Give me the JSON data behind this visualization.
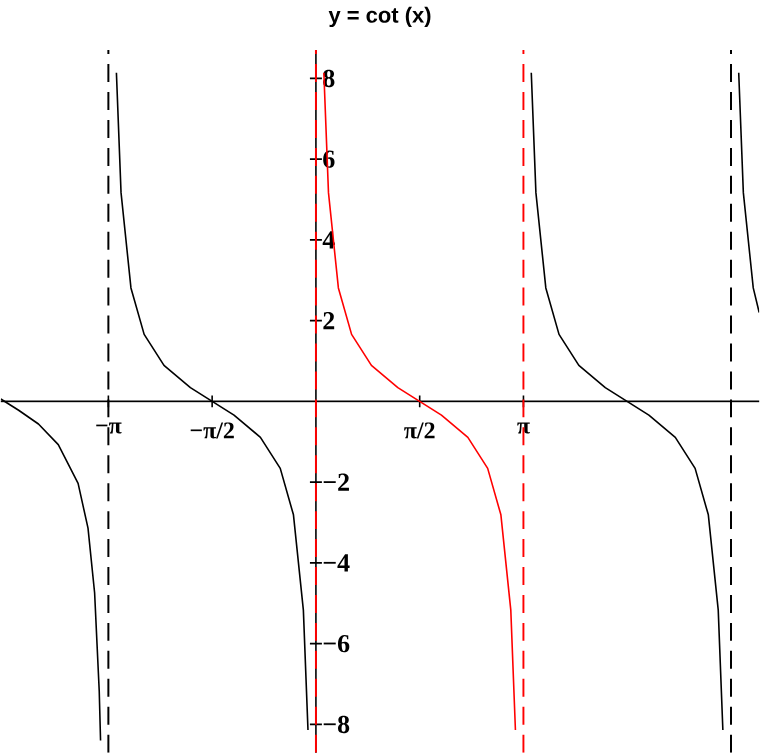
{
  "chart_data": {
    "type": "line",
    "title": "y = cot (x)",
    "xlim": [
      -4.77,
      6.71
    ],
    "ylim": [
      -8.7,
      8.7
    ],
    "xticks": [
      {
        "value": -3.1416,
        "label": "−π"
      },
      {
        "value": -1.5708,
        "label": "−π/2"
      },
      {
        "value": 1.5708,
        "label": "π/2"
      },
      {
        "value": 3.1416,
        "label": "π"
      }
    ],
    "yticks": [
      {
        "value": -8,
        "label": "−8"
      },
      {
        "value": -6,
        "label": "−6"
      },
      {
        "value": -4,
        "label": "−4"
      },
      {
        "value": -2,
        "label": "−2"
      },
      2,
      4,
      6,
      8
    ],
    "series": [
      {
        "color": "#000000",
        "x": [
          -4.77,
          -4.5,
          -4.2,
          -3.9,
          -3.6,
          -3.45,
          -3.35,
          -3.28,
          -3.26
        ],
        "values": [
          0.06,
          -0.22,
          -0.56,
          -1.07,
          -2.03,
          -3.14,
          -4.74,
          -7.18,
          -8.4
        ]
      },
      {
        "color": "#000000",
        "x": [
          -3.02,
          -2.95,
          -2.8,
          -2.6,
          -2.3,
          -1.9,
          -1.57,
          -1.24,
          -0.84,
          -0.54,
          -0.34,
          -0.19,
          -0.12
        ],
        "values": [
          8.14,
          5.17,
          2.81,
          1.66,
          0.89,
          0.34,
          0,
          -0.34,
          -0.89,
          -1.66,
          -2.81,
          -5.17,
          -8.14
        ]
      },
      {
        "color": "#ff0000",
        "x": [
          0.12,
          0.19,
          0.34,
          0.54,
          0.84,
          1.24,
          1.57,
          1.9,
          2.3,
          2.6,
          2.8,
          2.95,
          3.02
        ],
        "values": [
          8.14,
          5.17,
          2.81,
          1.66,
          0.89,
          0.34,
          0,
          -0.34,
          -0.89,
          -1.66,
          -2.81,
          -5.17,
          -8.14
        ]
      },
      {
        "color": "#000000",
        "x": [
          3.26,
          3.33,
          3.48,
          3.68,
          3.98,
          4.38,
          4.71,
          5.04,
          5.44,
          5.74,
          5.94,
          6.09,
          6.16
        ],
        "values": [
          8.14,
          5.17,
          2.81,
          1.66,
          0.89,
          0.34,
          0,
          -0.34,
          -0.89,
          -1.66,
          -2.81,
          -5.17,
          -8.14
        ]
      },
      {
        "color": "#000000",
        "x": [
          6.4,
          6.47,
          6.62,
          6.71
        ],
        "values": [
          8.14,
          5.17,
          2.81,
          2.2
        ]
      }
    ],
    "ref_lines": [
      {
        "axis": "x",
        "value": -3.1416,
        "color": "#000000",
        "line_style": "dashed"
      },
      {
        "axis": "x",
        "value": 0,
        "color": "#ff0000",
        "line_style": "dashed"
      },
      {
        "axis": "x",
        "value": 3.1416,
        "color": "#ff0000",
        "line_style": "dashed"
      },
      {
        "axis": "x",
        "value": 6.2832,
        "color": "#000000",
        "line_style": "dashed"
      }
    ]
  }
}
